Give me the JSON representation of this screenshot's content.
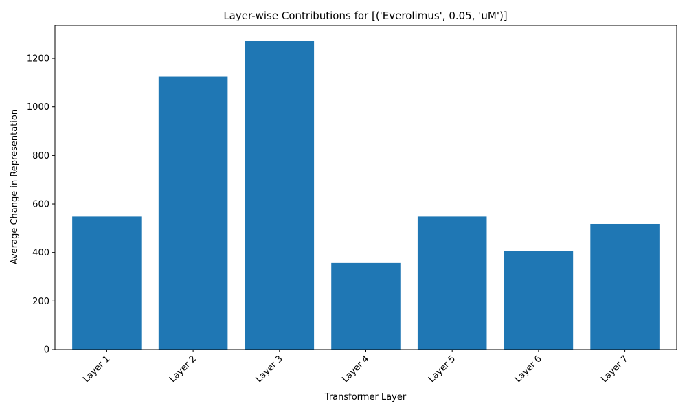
{
  "chart_data": {
    "type": "bar",
    "title": "Layer-wise Contributions for [('Everolimus', 0.05, 'uM')]",
    "xlabel": "Transformer Layer",
    "ylabel": "Average Change in Representation",
    "categories": [
      "Layer 1",
      "Layer 2",
      "Layer 3",
      "Layer 4",
      "Layer 5",
      "Layer 6",
      "Layer 7"
    ],
    "values": [
      548,
      1125,
      1272,
      357,
      548,
      405,
      518
    ],
    "ylim": [
      0,
      1336
    ],
    "yticks": [
      0,
      200,
      400,
      600,
      800,
      1000,
      1200
    ],
    "grid": false,
    "bar_color": "#1f77b4",
    "x_tick_rotation_deg": 45
  }
}
